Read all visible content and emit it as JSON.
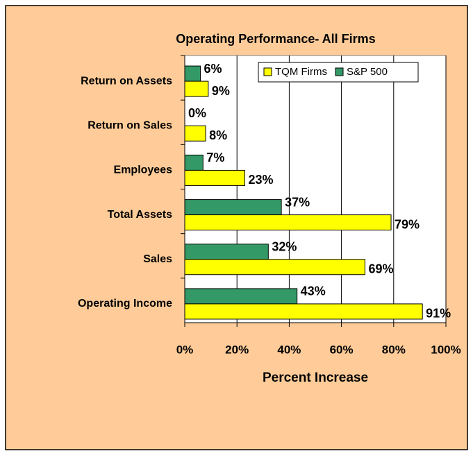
{
  "chart_data": {
    "type": "bar",
    "orientation": "horizontal",
    "title": "Operating Performance- All Firms",
    "xlabel": "Percent Increase",
    "categories": [
      "Return on Assets",
      "Return on Sales",
      "Employees",
      "Total Assets",
      "Sales",
      "Operating Income"
    ],
    "series": [
      {
        "name": "TQM Firms",
        "color": "#ffff00",
        "values": [
          9,
          8,
          23,
          79,
          69,
          91
        ],
        "value_labels": [
          "9%",
          "8%",
          "23%",
          "79%",
          "69%",
          "91%"
        ]
      },
      {
        "name": "S&P 500",
        "color": "#339966",
        "values": [
          6,
          0,
          7,
          37,
          32,
          43
        ],
        "value_labels": [
          "6%",
          "0%",
          "7%",
          "37%",
          "32%",
          "43%"
        ]
      }
    ],
    "xlim": [
      0,
      100
    ],
    "xticks": [
      {
        "value": 0,
        "label": "0%"
      },
      {
        "value": 20,
        "label": "20%"
      },
      {
        "value": 40,
        "label": "40%"
      },
      {
        "value": 60,
        "label": "60%"
      },
      {
        "value": 80,
        "label": "80%"
      },
      {
        "value": 100,
        "label": "100%"
      }
    ],
    "grid": true,
    "legend": "upper right"
  }
}
